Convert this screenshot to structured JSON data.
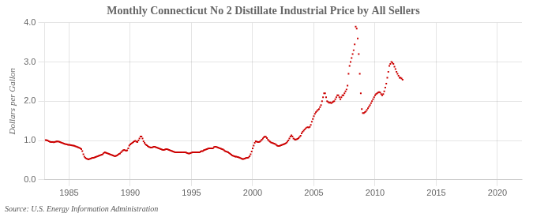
{
  "chart_data": {
    "type": "scatter",
    "title": "Monthly Connecticut No 2 Distillate Industrial Price by All Sellers",
    "ylabel": "Dollars per Gallon",
    "annotations": [
      "Source: U.S. Energy Information Administration"
    ],
    "color": "#CC0000",
    "marker": "square",
    "grid": true,
    "xlim": [
      1983.0,
      2022.0
    ],
    "xticks": [
      1985,
      1990,
      1995,
      2000,
      2005,
      2010,
      2015,
      2020
    ],
    "ylim": [
      0.0,
      4.0
    ],
    "yticks": [
      {
        "value": 0.0,
        "label": "0.0"
      },
      {
        "value": 1.0,
        "label": "1.0"
      },
      {
        "value": 2.0,
        "label": "2.0"
      },
      {
        "value": 3.0,
        "label": "3.0"
      },
      {
        "value": 4.0,
        "label": "4.0"
      }
    ],
    "x": [
      1983.083,
      1983.167,
      1983.25,
      1983.333,
      1983.417,
      1983.5,
      1983.583,
      1983.667,
      1983.75,
      1983.833,
      1983.917,
      1984.0,
      1984.083,
      1984.167,
      1984.25,
      1984.333,
      1984.417,
      1984.5,
      1984.583,
      1984.667,
      1984.75,
      1984.833,
      1984.917,
      1985.0,
      1985.083,
      1985.167,
      1985.25,
      1985.333,
      1985.417,
      1985.5,
      1985.583,
      1985.667,
      1985.75,
      1985.833,
      1985.917,
      1986.0,
      1986.083,
      1986.167,
      1986.25,
      1986.333,
      1986.417,
      1986.5,
      1986.583,
      1986.667,
      1986.75,
      1986.833,
      1986.917,
      1987.0,
      1987.083,
      1987.167,
      1987.25,
      1987.333,
      1987.417,
      1987.5,
      1987.583,
      1987.667,
      1987.75,
      1987.833,
      1987.917,
      1988.0,
      1988.083,
      1988.167,
      1988.25,
      1988.333,
      1988.417,
      1988.5,
      1988.583,
      1988.667,
      1988.75,
      1988.833,
      1988.917,
      1989.0,
      1989.083,
      1989.167,
      1989.25,
      1989.333,
      1989.417,
      1989.5,
      1989.583,
      1989.667,
      1989.75,
      1989.833,
      1989.917,
      1990.0,
      1990.083,
      1990.167,
      1990.25,
      1990.333,
      1990.417,
      1990.5,
      1990.583,
      1990.667,
      1990.75,
      1990.833,
      1990.917,
      1991.0,
      1991.083,
      1991.167,
      1991.25,
      1991.333,
      1991.417,
      1991.5,
      1991.583,
      1991.667,
      1991.75,
      1991.833,
      1991.917,
      1992.0,
      1992.083,
      1992.167,
      1992.25,
      1992.333,
      1992.417,
      1992.5,
      1992.583,
      1992.667,
      1992.75,
      1992.833,
      1992.917,
      1993.0,
      1993.083,
      1993.167,
      1993.25,
      1993.333,
      1993.417,
      1993.5,
      1993.583,
      1993.667,
      1993.75,
      1993.833,
      1993.917,
      1994.0,
      1994.083,
      1994.167,
      1994.25,
      1994.333,
      1994.417,
      1994.5,
      1994.583,
      1994.667,
      1994.75,
      1994.833,
      1994.917,
      1995.0,
      1995.083,
      1995.167,
      1995.25,
      1995.333,
      1995.417,
      1995.5,
      1995.583,
      1995.667,
      1995.75,
      1995.833,
      1995.917,
      1996.0,
      1996.083,
      1996.167,
      1996.25,
      1996.333,
      1996.417,
      1996.5,
      1996.583,
      1996.667,
      1996.75,
      1996.833,
      1996.917,
      1997.0,
      1997.083,
      1997.167,
      1997.25,
      1997.333,
      1997.417,
      1997.5,
      1997.583,
      1997.667,
      1997.75,
      1997.833,
      1997.917,
      1998.0,
      1998.083,
      1998.167,
      1998.25,
      1998.333,
      1998.417,
      1998.5,
      1998.583,
      1998.667,
      1998.75,
      1998.833,
      1998.917,
      1999.0,
      1999.083,
      1999.167,
      1999.25,
      1999.333,
      1999.417,
      1999.5,
      1999.583,
      1999.667,
      1999.75,
      1999.833,
      1999.917,
      2000.0,
      2000.083,
      2000.167,
      2000.25,
      2000.333,
      2000.417,
      2000.5,
      2000.583,
      2000.667,
      2000.75,
      2000.833,
      2000.917,
      2001.0,
      2001.083,
      2001.167,
      2001.25,
      2001.333,
      2001.417,
      2001.5,
      2001.583,
      2001.667,
      2001.75,
      2001.833,
      2001.917,
      2002.0,
      2002.083,
      2002.167,
      2002.25,
      2002.333,
      2002.417,
      2002.5,
      2002.583,
      2002.667,
      2002.75,
      2002.833,
      2002.917,
      2003.0,
      2003.083,
      2003.167,
      2003.25,
      2003.333,
      2003.417,
      2003.5,
      2003.583,
      2003.667,
      2003.75,
      2003.833,
      2003.917,
      2004.0,
      2004.083,
      2004.167,
      2004.25,
      2004.333,
      2004.417,
      2004.5,
      2004.583,
      2004.667,
      2004.75,
      2004.833,
      2004.917,
      2005.0,
      2005.083,
      2005.167,
      2005.25,
      2005.333,
      2005.417,
      2005.5,
      2005.583,
      2005.667,
      2005.75,
      2005.833,
      2005.917,
      2006.0,
      2006.083,
      2006.167,
      2006.25,
      2006.333,
      2006.417,
      2006.5,
      2006.583,
      2006.667,
      2006.75,
      2006.833,
      2006.917,
      2007.0,
      2007.083,
      2007.167,
      2007.25,
      2007.333,
      2007.417,
      2007.5,
      2007.583,
      2007.667,
      2007.75,
      2007.833,
      2007.917,
      2008.0,
      2008.083,
      2008.167,
      2008.25,
      2008.333,
      2008.417,
      2008.5,
      2008.583,
      2008.667,
      2008.75,
      2008.833,
      2008.917,
      2009.0,
      2009.083,
      2009.167,
      2009.25,
      2009.333,
      2009.417,
      2009.5,
      2009.583,
      2009.667,
      2009.75,
      2009.833,
      2009.917,
      2010.0,
      2010.083,
      2010.167,
      2010.25,
      2010.333,
      2010.417,
      2010.5,
      2010.583,
      2010.667,
      2010.75,
      2010.833,
      2010.917,
      2011.0,
      2011.083,
      2011.167,
      2011.25,
      2011.333,
      2011.417,
      2011.5,
      2011.583,
      2011.667,
      2011.75,
      2011.833,
      2011.917,
      2012.0,
      2012.083,
      2012.167,
      2012.25
    ],
    "values": [
      1.01,
      1.005,
      1.0,
      0.98,
      0.97,
      0.96,
      0.96,
      0.96,
      0.955,
      0.96,
      0.97,
      0.975,
      0.975,
      0.97,
      0.96,
      0.95,
      0.94,
      0.93,
      0.92,
      0.91,
      0.905,
      0.9,
      0.89,
      0.89,
      0.885,
      0.88,
      0.875,
      0.87,
      0.865,
      0.855,
      0.845,
      0.835,
      0.825,
      0.815,
      0.8,
      0.78,
      0.73,
      0.65,
      0.59,
      0.56,
      0.54,
      0.53,
      0.52,
      0.53,
      0.54,
      0.55,
      0.56,
      0.56,
      0.57,
      0.58,
      0.59,
      0.6,
      0.61,
      0.62,
      0.63,
      0.64,
      0.65,
      0.68,
      0.7,
      0.69,
      0.68,
      0.67,
      0.66,
      0.65,
      0.64,
      0.63,
      0.62,
      0.61,
      0.6,
      0.61,
      0.62,
      0.64,
      0.66,
      0.67,
      0.7,
      0.73,
      0.75,
      0.76,
      0.75,
      0.74,
      0.75,
      0.8,
      0.87,
      0.9,
      0.92,
      0.94,
      0.96,
      0.98,
      0.99,
      0.97,
      0.96,
      1.0,
      1.05,
      1.1,
      1.1,
      1.05,
      0.98,
      0.94,
      0.9,
      0.88,
      0.86,
      0.84,
      0.83,
      0.82,
      0.82,
      0.83,
      0.84,
      0.84,
      0.83,
      0.82,
      0.81,
      0.8,
      0.79,
      0.78,
      0.77,
      0.76,
      0.76,
      0.77,
      0.78,
      0.78,
      0.77,
      0.76,
      0.75,
      0.74,
      0.73,
      0.72,
      0.71,
      0.7,
      0.7,
      0.7,
      0.7,
      0.7,
      0.7,
      0.7,
      0.7,
      0.7,
      0.7,
      0.7,
      0.69,
      0.68,
      0.67,
      0.67,
      0.68,
      0.69,
      0.7,
      0.7,
      0.7,
      0.7,
      0.7,
      0.7,
      0.7,
      0.7,
      0.72,
      0.73,
      0.73,
      0.75,
      0.76,
      0.77,
      0.78,
      0.79,
      0.8,
      0.8,
      0.8,
      0.8,
      0.8,
      0.83,
      0.84,
      0.84,
      0.83,
      0.82,
      0.81,
      0.8,
      0.79,
      0.78,
      0.77,
      0.75,
      0.73,
      0.72,
      0.71,
      0.7,
      0.68,
      0.66,
      0.64,
      0.62,
      0.61,
      0.6,
      0.59,
      0.59,
      0.58,
      0.575,
      0.565,
      0.555,
      0.54,
      0.53,
      0.53,
      0.54,
      0.55,
      0.56,
      0.56,
      0.57,
      0.6,
      0.65,
      0.72,
      0.8,
      0.87,
      0.94,
      0.98,
      0.97,
      0.96,
      0.96,
      0.97,
      0.99,
      1.02,
      1.05,
      1.08,
      1.1,
      1.09,
      1.06,
      1.02,
      0.99,
      0.97,
      0.95,
      0.94,
      0.93,
      0.92,
      0.91,
      0.89,
      0.87,
      0.86,
      0.86,
      0.87,
      0.88,
      0.89,
      0.9,
      0.91,
      0.92,
      0.94,
      0.97,
      1.0,
      1.05,
      1.1,
      1.13,
      1.1,
      1.05,
      1.03,
      1.02,
      1.03,
      1.04,
      1.06,
      1.09,
      1.12,
      1.18,
      1.22,
      1.25,
      1.28,
      1.31,
      1.33,
      1.34,
      1.33,
      1.35,
      1.4,
      1.48,
      1.55,
      1.62,
      1.68,
      1.72,
      1.75,
      1.78,
      1.8,
      1.85,
      1.9,
      2.0,
      2.1,
      2.2,
      2.2,
      2.1,
      2.0,
      1.98,
      1.96,
      1.97,
      1.95,
      1.97,
      1.99,
      2.0,
      2.05,
      2.1,
      2.15,
      2.15,
      2.1,
      2.05,
      2.1,
      2.15,
      2.15,
      2.2,
      2.25,
      2.3,
      2.4,
      2.7,
      2.9,
      3.0,
      3.1,
      3.2,
      3.3,
      3.45,
      3.9,
      3.85,
      3.6,
      3.2,
      2.7,
      2.2,
      1.8,
      1.7,
      1.7,
      1.72,
      1.74,
      1.78,
      1.82,
      1.86,
      1.9,
      1.95,
      2.0,
      2.05,
      2.1,
      2.15,
      2.18,
      2.2,
      2.22,
      2.23,
      2.22,
      2.18,
      2.15,
      2.18,
      2.25,
      2.35,
      2.45,
      2.6,
      2.75,
      2.9,
      2.95,
      3.0,
      2.98,
      2.95,
      2.88,
      2.82,
      2.75,
      2.7,
      2.65,
      2.6,
      2.6,
      2.58,
      2.55
    ]
  }
}
